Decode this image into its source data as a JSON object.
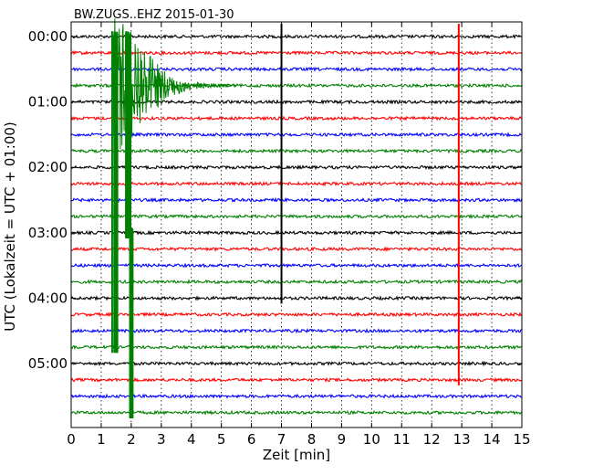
{
  "chart_data": {
    "type": "line",
    "title": "BW.ZUGS..EHZ 2015-01-30",
    "xlabel": "Zeit  [min]",
    "ylabel": "UTC (Lokalzeit = UTC + 01:00)",
    "xlim": [
      0,
      15
    ],
    "x_ticks": [
      "0",
      "1",
      "2",
      "3",
      "4",
      "5",
      "6",
      "7",
      "8",
      "9",
      "10",
      "11",
      "12",
      "13",
      "14",
      "15"
    ],
    "y_tick_labels": [
      "00:00",
      "01:00",
      "02:00",
      "03:00",
      "04:00",
      "05:00"
    ],
    "trace_interval_min": 15,
    "trace_count": 24,
    "trace_colors": [
      "#000000",
      "#ff0000",
      "#0000ff",
      "#008000"
    ],
    "grid": "vertical dotted every minute",
    "events": [
      {
        "name": "earthquake",
        "start_min": 1.4,
        "first_trace": 3,
        "decay_to_trace": 4,
        "continues_through_trace": 23
      },
      {
        "name": "spike",
        "x_min": 7.0,
        "first_trace": 0,
        "last_trace": 16,
        "color_of_trace": "#000000"
      },
      {
        "name": "spike",
        "x_min": 12.9,
        "first_trace": 0,
        "last_trace": 21,
        "color_of_trace": "#ff0000"
      }
    ]
  }
}
